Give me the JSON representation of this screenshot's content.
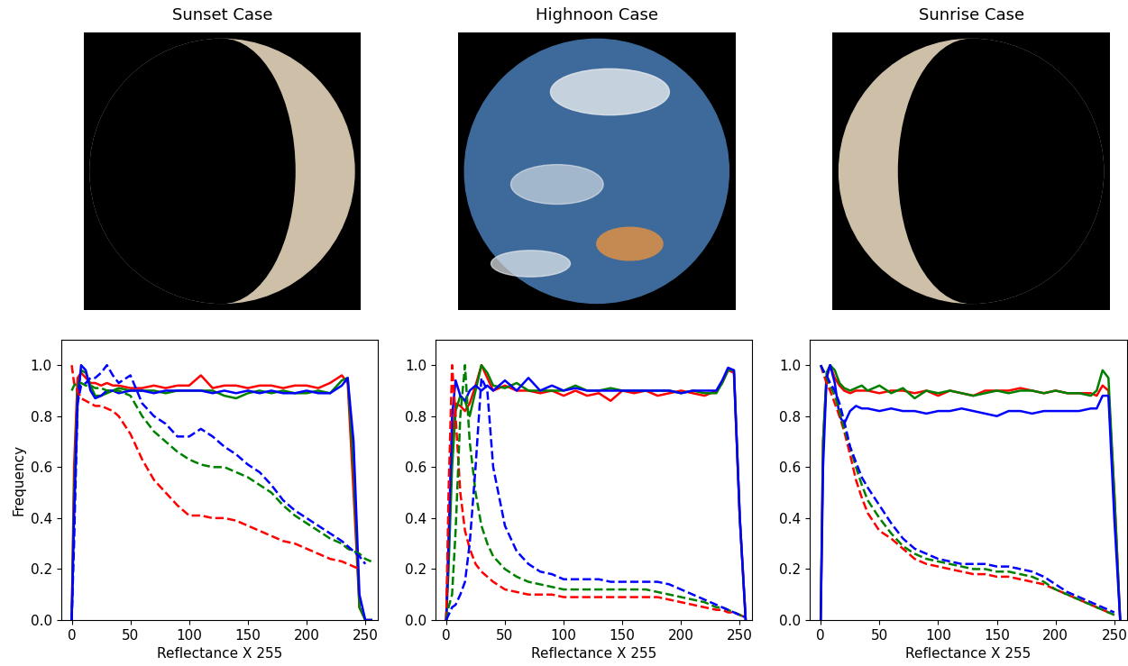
{
  "images": [
    {
      "title": "Sunset Case"
    },
    {
      "title": "Highnoon Case"
    },
    {
      "title": "Sunrise Case"
    }
  ],
  "chart_data": [
    {
      "type": "line",
      "x_label": "Reflectance X 255",
      "y_label": "Frequency",
      "x": [
        0,
        2,
        5,
        8,
        12,
        16,
        20,
        25,
        30,
        35,
        40,
        50,
        60,
        70,
        80,
        90,
        100,
        110,
        120,
        130,
        140,
        150,
        160,
        170,
        180,
        190,
        200,
        210,
        220,
        230,
        235,
        240,
        245,
        250,
        255
      ],
      "xlim": [
        -9.2,
        260.7
      ],
      "ylim": [
        0,
        1.1
      ],
      "xticks": [
        0,
        50,
        100,
        150,
        200,
        250
      ],
      "yticks": [
        {
          "value": 0,
          "label": "0.0"
        },
        {
          "value": 0.2,
          "label": "0.2"
        },
        {
          "value": 0.4,
          "label": "0.4"
        },
        {
          "value": 0.6,
          "label": "0.6"
        },
        {
          "value": 0.8,
          "label": "0.8"
        },
        {
          "value": 1.0,
          "label": "1.0"
        }
      ],
      "series": [
        {
          "color": "red",
          "line_style": "solid",
          "values": [
            0,
            0.6,
            0.95,
            0.97,
            0.95,
            0.93,
            0.93,
            0.92,
            0.93,
            0.92,
            0.92,
            0.91,
            0.91,
            0.92,
            0.91,
            0.92,
            0.92,
            0.96,
            0.91,
            0.92,
            0.92,
            0.91,
            0.92,
            0.92,
            0.91,
            0.92,
            0.92,
            0.91,
            0.93,
            0.96,
            0.93,
            0.5,
            0.05,
            0,
            0
          ]
        },
        {
          "color": "green",
          "line_style": "solid",
          "values": [
            0,
            0.5,
            0.9,
            0.98,
            0.97,
            0.92,
            0.88,
            0.88,
            0.89,
            0.9,
            0.91,
            0.9,
            0.9,
            0.9,
            0.89,
            0.9,
            0.9,
            0.9,
            0.9,
            0.88,
            0.87,
            0.89,
            0.9,
            0.89,
            0.9,
            0.89,
            0.89,
            0.9,
            0.89,
            0.94,
            0.95,
            0.6,
            0.05,
            0,
            0
          ]
        },
        {
          "color": "blue",
          "line_style": "solid",
          "values": [
            0,
            0.4,
            0.85,
            1.0,
            0.98,
            0.9,
            0.87,
            0.88,
            0.9,
            0.9,
            0.89,
            0.9,
            0.9,
            0.89,
            0.9,
            0.9,
            0.9,
            0.9,
            0.89,
            0.9,
            0.89,
            0.9,
            0.89,
            0.9,
            0.89,
            0.89,
            0.9,
            0.89,
            0.89,
            0.92,
            0.95,
            0.7,
            0.1,
            0,
            0
          ]
        },
        {
          "color": "red",
          "line_style": "dashed",
          "values": [
            1.0,
            0.93,
            0.9,
            0.87,
            0.86,
            0.85,
            0.84,
            0.84,
            0.83,
            0.82,
            0.8,
            0.73,
            0.63,
            0.55,
            0.5,
            0.45,
            0.41,
            0.41,
            0.4,
            0.4,
            0.39,
            0.37,
            0.35,
            0.33,
            0.31,
            0.3,
            0.28,
            0.26,
            0.24,
            0.23,
            0.22,
            0.21,
            0.2,
            null,
            null
          ]
        },
        {
          "color": "green",
          "line_style": "dashed",
          "values": [
            0.9,
            0.92,
            0.93,
            0.93,
            0.92,
            0.92,
            0.91,
            0.91,
            0.9,
            0.9,
            0.9,
            0.88,
            0.8,
            0.74,
            0.7,
            0.66,
            0.63,
            0.61,
            0.6,
            0.6,
            0.58,
            0.56,
            0.53,
            0.5,
            0.45,
            0.41,
            0.38,
            0.35,
            0.32,
            0.3,
            0.28,
            0.27,
            0.26,
            0.24,
            0.23
          ]
        },
        {
          "color": "blue",
          "line_style": "dashed",
          "values": [
            0,
            0.3,
            0.85,
            0.92,
            0.93,
            0.95,
            0.95,
            0.97,
            1.0,
            0.96,
            0.93,
            0.96,
            0.85,
            0.8,
            0.77,
            0.72,
            0.72,
            0.75,
            0.72,
            0.68,
            0.65,
            0.61,
            0.58,
            0.53,
            0.47,
            0.43,
            0.4,
            0.37,
            0.34,
            0.31,
            0.29,
            0.27,
            0.25,
            0.22,
            null
          ]
        }
      ]
    },
    {
      "type": "line",
      "x_label": "Reflectance X 255",
      "x": [
        0,
        2,
        5,
        8,
        12,
        16,
        20,
        25,
        30,
        35,
        40,
        50,
        60,
        70,
        80,
        90,
        100,
        110,
        120,
        130,
        140,
        150,
        160,
        170,
        180,
        190,
        200,
        210,
        220,
        230,
        235,
        240,
        245,
        250,
        255
      ],
      "xlim": [
        -9.2,
        260.7
      ],
      "ylim": [
        0,
        1.1
      ],
      "xticks": [
        0,
        50,
        100,
        150,
        200,
        250
      ],
      "yticks": [
        {
          "value": 0,
          "label": "0.0"
        },
        {
          "value": 0.2,
          "label": "0.2"
        },
        {
          "value": 0.4,
          "label": "0.4"
        },
        {
          "value": 0.6,
          "label": "0.6"
        },
        {
          "value": 0.8,
          "label": "0.8"
        },
        {
          "value": 1.0,
          "label": "1.0"
        }
      ],
      "series": [
        {
          "color": "red",
          "line_style": "solid",
          "values": [
            0,
            0.3,
            0.7,
            0.85,
            0.84,
            0.82,
            0.85,
            0.92,
            1.0,
            0.95,
            0.9,
            0.92,
            0.9,
            0.9,
            0.89,
            0.9,
            0.88,
            0.9,
            0.88,
            0.89,
            0.86,
            0.9,
            0.89,
            0.9,
            0.88,
            0.89,
            0.9,
            0.89,
            0.88,
            0.9,
            0.93,
            0.98,
            0.97,
            0.4,
            0
          ]
        },
        {
          "color": "green",
          "line_style": "solid",
          "values": [
            0,
            0.2,
            0.6,
            0.82,
            0.88,
            0.86,
            0.8,
            0.9,
            1.0,
            0.97,
            0.92,
            0.91,
            0.93,
            0.9,
            0.9,
            0.9,
            0.9,
            0.92,
            0.9,
            0.9,
            0.91,
            0.9,
            0.9,
            0.9,
            0.9,
            0.9,
            0.89,
            0.9,
            0.89,
            0.89,
            0.93,
            0.98,
            0.98,
            0.4,
            0
          ]
        },
        {
          "color": "blue",
          "line_style": "solid",
          "values": [
            0,
            0.3,
            0.8,
            0.94,
            0.88,
            0.86,
            0.9,
            0.92,
            0.9,
            0.92,
            0.9,
            0.94,
            0.9,
            0.95,
            0.9,
            0.92,
            0.9,
            0.91,
            0.9,
            0.9,
            0.9,
            0.9,
            0.9,
            0.9,
            0.9,
            0.9,
            0.89,
            0.9,
            0.9,
            0.9,
            0.94,
            0.99,
            0.98,
            0.4,
            0
          ]
        },
        {
          "color": "red",
          "line_style": "dashed",
          "values": [
            0,
            0.5,
            1.0,
            0.8,
            0.5,
            0.35,
            0.28,
            0.22,
            0.19,
            0.17,
            0.15,
            0.12,
            0.11,
            0.1,
            0.1,
            0.1,
            0.09,
            0.09,
            0.09,
            0.09,
            0.09,
            0.09,
            0.09,
            0.09,
            0.09,
            0.08,
            0.07,
            0.06,
            0.05,
            0.04,
            0.04,
            0.03,
            0.03,
            0.02,
            0.01
          ]
        },
        {
          "color": "green",
          "line_style": "dashed",
          "values": [
            0,
            0.05,
            0.1,
            0.35,
            0.8,
            1.0,
            0.7,
            0.5,
            0.37,
            0.3,
            0.25,
            0.2,
            0.17,
            0.15,
            0.14,
            0.13,
            0.12,
            0.12,
            0.12,
            0.12,
            0.12,
            0.12,
            0.12,
            0.12,
            0.11,
            0.1,
            0.09,
            0.08,
            0.07,
            0.05,
            0.05,
            0.04,
            0.03,
            0.02,
            0.01
          ]
        },
        {
          "color": "blue",
          "line_style": "dashed",
          "values": [
            0,
            0.02,
            0.05,
            0.06,
            0.1,
            0.15,
            0.3,
            0.6,
            0.95,
            0.9,
            0.6,
            0.37,
            0.27,
            0.22,
            0.19,
            0.18,
            0.16,
            0.16,
            0.16,
            0.16,
            0.15,
            0.15,
            0.15,
            0.15,
            0.15,
            0.14,
            0.12,
            0.1,
            0.08,
            0.06,
            0.05,
            0.04,
            0.03,
            0.02,
            0.01
          ]
        }
      ]
    },
    {
      "type": "line",
      "x_label": "Reflectance X 255",
      "x": [
        0,
        2,
        5,
        8,
        12,
        16,
        20,
        25,
        30,
        35,
        40,
        50,
        60,
        70,
        80,
        90,
        100,
        110,
        120,
        130,
        140,
        150,
        160,
        170,
        180,
        190,
        200,
        210,
        220,
        230,
        235,
        240,
        245,
        250,
        255
      ],
      "xlim": [
        -9.2,
        260.7
      ],
      "ylim": [
        0,
        1.1
      ],
      "xticks": [
        0,
        50,
        100,
        150,
        200,
        250
      ],
      "yticks": [
        {
          "value": 0,
          "label": "0.0"
        },
        {
          "value": 0.2,
          "label": "0.2"
        },
        {
          "value": 0.4,
          "label": "0.4"
        },
        {
          "value": 0.6,
          "label": "0.6"
        },
        {
          "value": 0.8,
          "label": "0.8"
        },
        {
          "value": 1.0,
          "label": "1.0"
        }
      ],
      "series": [
        {
          "color": "red",
          "line_style": "solid",
          "values": [
            0,
            0.7,
            0.95,
            1.0,
            0.95,
            0.92,
            0.9,
            0.89,
            0.9,
            0.9,
            0.9,
            0.89,
            0.9,
            0.9,
            0.89,
            0.9,
            0.88,
            0.9,
            0.89,
            0.88,
            0.9,
            0.9,
            0.9,
            0.91,
            0.9,
            0.89,
            0.9,
            0.89,
            0.89,
            0.89,
            0.88,
            0.92,
            0.9,
            0.5,
            0
          ]
        },
        {
          "color": "green",
          "line_style": "solid",
          "values": [
            0,
            0.7,
            0.97,
            1.0,
            0.98,
            0.93,
            0.91,
            0.9,
            0.91,
            0.92,
            0.9,
            0.92,
            0.89,
            0.91,
            0.87,
            0.9,
            0.89,
            0.9,
            0.89,
            0.88,
            0.89,
            0.9,
            0.89,
            0.9,
            0.9,
            0.89,
            0.9,
            0.89,
            0.89,
            0.88,
            0.9,
            0.98,
            0.95,
            0.5,
            0
          ]
        },
        {
          "color": "blue",
          "line_style": "solid",
          "values": [
            0,
            0.6,
            0.95,
            1.0,
            0.93,
            0.8,
            0.77,
            0.82,
            0.84,
            0.83,
            0.83,
            0.82,
            0.83,
            0.82,
            0.82,
            0.81,
            0.82,
            0.82,
            0.83,
            0.82,
            0.81,
            0.8,
            0.82,
            0.82,
            0.81,
            0.82,
            0.82,
            0.82,
            0.82,
            0.83,
            0.83,
            0.88,
            0.88,
            0.4,
            0
          ]
        },
        {
          "color": "red",
          "line_style": "dashed",
          "values": [
            1.0,
            0.97,
            0.93,
            0.9,
            0.85,
            0.8,
            0.74,
            0.65,
            0.55,
            0.48,
            0.42,
            0.35,
            0.32,
            0.28,
            0.24,
            0.22,
            0.21,
            0.2,
            0.19,
            0.18,
            0.18,
            0.17,
            0.17,
            0.16,
            0.15,
            0.14,
            0.12,
            0.1,
            0.08,
            0.06,
            0.05,
            0.04,
            0.03,
            0.02,
            null
          ]
        },
        {
          "color": "green",
          "line_style": "dashed",
          "values": [
            1.0,
            0.98,
            0.95,
            0.92,
            0.88,
            0.82,
            0.75,
            0.68,
            0.6,
            0.53,
            0.47,
            0.4,
            0.34,
            0.29,
            0.26,
            0.24,
            0.23,
            0.22,
            0.21,
            0.2,
            0.2,
            0.19,
            0.19,
            0.18,
            0.17,
            0.15,
            0.12,
            0.1,
            0.08,
            0.06,
            0.05,
            0.04,
            0.03,
            0.02,
            null
          ]
        },
        {
          "color": "blue",
          "line_style": "dashed",
          "values": [
            1.0,
            0.98,
            0.96,
            0.93,
            0.9,
            0.85,
            0.78,
            0.68,
            0.62,
            0.56,
            0.52,
            0.45,
            0.38,
            0.32,
            0.28,
            0.26,
            0.24,
            0.23,
            0.22,
            0.22,
            0.22,
            0.21,
            0.21,
            0.2,
            0.19,
            0.17,
            0.14,
            0.11,
            0.09,
            0.07,
            0.06,
            0.05,
            0.04,
            0.03,
            null
          ]
        }
      ]
    }
  ]
}
